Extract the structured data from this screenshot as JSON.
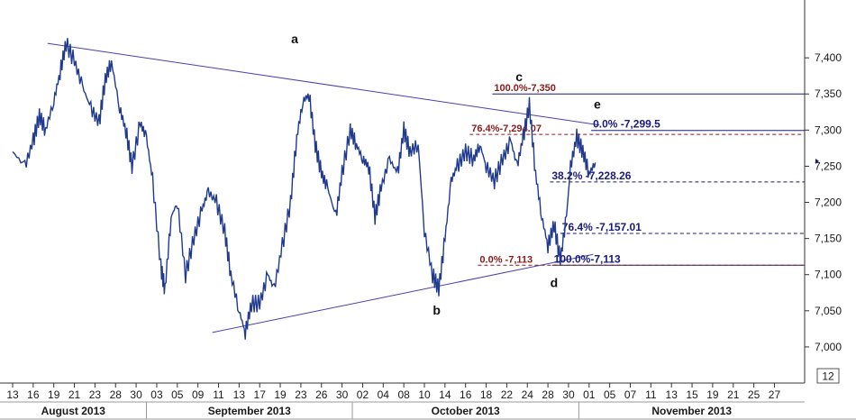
{
  "chart_data": {
    "type": "line",
    "y_axis": {
      "ticks": [
        {
          "value": 7000,
          "label": "7,000"
        },
        {
          "value": 7050,
          "label": "7,050"
        },
        {
          "value": 7100,
          "label": "7,100"
        },
        {
          "value": 7150,
          "label": "7,150"
        },
        {
          "value": 7200,
          "label": "7,200"
        },
        {
          "value": 7250,
          "label": "7,250"
        },
        {
          "value": 7300,
          "label": "7,300"
        },
        {
          "value": 7350,
          "label": "7,350"
        },
        {
          "value": 7400,
          "label": "7,400"
        }
      ],
      "ylim": [
        6950,
        7480
      ],
      "zoom_label": "12"
    },
    "x_axis": {
      "day_ticks": [
        "13",
        "16",
        "19",
        "21",
        "23",
        "28",
        "30",
        "03",
        "05",
        "09",
        "11",
        "13",
        "17",
        "19",
        "23",
        "26",
        "30",
        "02",
        "04",
        "08",
        "10",
        "14",
        "16",
        "18",
        "22",
        "24",
        "28",
        "30",
        "01",
        "05",
        "07",
        "11",
        "13",
        "15",
        "19",
        "21",
        "25",
        "27"
      ],
      "months": [
        {
          "label": "August 2013",
          "first_tick": 0
        },
        {
          "label": "September 2013",
          "first_tick": 7
        },
        {
          "label": "October 2013",
          "first_tick": 17
        },
        {
          "label": "November 2013",
          "first_tick": 28
        }
      ]
    },
    "series": [
      {
        "points": [
          [
            0,
            7270
          ],
          [
            0.6,
            7250
          ],
          [
            1,
            7285
          ],
          [
            1.3,
            7320
          ],
          [
            1.6,
            7300
          ],
          [
            2,
            7340
          ],
          [
            2.3,
            7380
          ],
          [
            2.6,
            7420
          ],
          [
            3,
            7395
          ],
          [
            3.4,
            7360
          ],
          [
            3.8,
            7330
          ],
          [
            4.2,
            7310
          ],
          [
            4.5,
            7370
          ],
          [
            4.8,
            7395
          ],
          [
            5.2,
            7330
          ],
          [
            5.5,
            7300
          ],
          [
            5.8,
            7250
          ],
          [
            6.2,
            7310
          ],
          [
            6.5,
            7290
          ],
          [
            6.8,
            7230
          ],
          [
            7.2,
            7110
          ],
          [
            7.4,
            7080
          ],
          [
            7.7,
            7180
          ],
          [
            8,
            7200
          ],
          [
            8.4,
            7100
          ],
          [
            8.8,
            7150
          ],
          [
            9.2,
            7190
          ],
          [
            9.5,
            7215
          ],
          [
            9.9,
            7200
          ],
          [
            10.3,
            7160
          ],
          [
            10.6,
            7100
          ],
          [
            11,
            7050
          ],
          [
            11.3,
            7020
          ],
          [
            11.6,
            7060
          ],
          [
            12,
            7060
          ],
          [
            12.4,
            7100
          ],
          [
            12.7,
            7080
          ],
          [
            13.1,
            7140
          ],
          [
            13.5,
            7200
          ],
          [
            13.8,
            7290
          ],
          [
            14.1,
            7340
          ],
          [
            14.4,
            7350
          ],
          [
            14.7,
            7280
          ],
          [
            15,
            7240
          ],
          [
            15.3,
            7220
          ],
          [
            15.7,
            7180
          ],
          [
            16,
            7240
          ],
          [
            16.4,
            7300
          ],
          [
            16.7,
            7280
          ],
          [
            17,
            7260
          ],
          [
            17.3,
            7250
          ],
          [
            17.6,
            7180
          ],
          [
            17.9,
            7220
          ],
          [
            18.3,
            7260
          ],
          [
            18.7,
            7240
          ],
          [
            19,
            7300
          ],
          [
            19.3,
            7270
          ],
          [
            19.7,
            7280
          ],
          [
            20,
            7160
          ],
          [
            20.4,
            7100
          ],
          [
            20.7,
            7080
          ],
          [
            21,
            7150
          ],
          [
            21.3,
            7230
          ],
          [
            21.6,
            7250
          ],
          [
            22,
            7270
          ],
          [
            22.4,
            7260
          ],
          [
            22.7,
            7280
          ],
          [
            23,
            7250
          ],
          [
            23.4,
            7230
          ],
          [
            23.8,
            7260
          ],
          [
            24.2,
            7285
          ],
          [
            24.5,
            7250
          ],
          [
            24.8,
            7290
          ],
          [
            25.1,
            7335
          ],
          [
            25.4,
            7240
          ],
          [
            25.7,
            7180
          ],
          [
            26,
            7140
          ],
          [
            26.3,
            7170
          ],
          [
            26.6,
            7120
          ],
          [
            26.9,
            7180
          ],
          [
            27.1,
            7250
          ],
          [
            27.4,
            7290
          ],
          [
            27.7,
            7270
          ],
          [
            28,
            7240
          ],
          [
            28.3,
            7255
          ]
        ]
      }
    ],
    "trendlines": [
      {
        "x": [
          1.7,
          28.5
        ],
        "y": [
          7420,
          7307
        ]
      },
      {
        "x": [
          9.7,
          28.2
        ],
        "y": [
          7020,
          7128
        ]
      }
    ],
    "fib_levels": [
      {
        "value": 7350,
        "label": "100.0%-7,350",
        "style": "solid",
        "color": "#1a1a7a",
        "label_color": "#8b1a1a",
        "x_from": 23.3
      },
      {
        "value": 7294.07,
        "label": "76.4%-7,294.07",
        "style": "dashed",
        "color": "#8b1a1a",
        "label_color": "#8b1a1a",
        "x_from": 22.2
      },
      {
        "value": 7299.5,
        "label": "0.0%   -7,299.5",
        "style": "solid",
        "color": "#1a1a7a",
        "label_color": "#1a1a7a",
        "x_from": 28.1
      },
      {
        "value": 7228.26,
        "label": "38.2%  -7,228.26",
        "style": "dashed",
        "color": "#1a1a7a",
        "label_color": "#1a1a7a",
        "x_from": 26.1
      },
      {
        "value": 7157.01,
        "label": "76.4%  -7,157.01",
        "style": "dashed",
        "color": "#1a1a7a",
        "label_color": "#1a1a7a",
        "x_from": 26.6
      },
      {
        "value": 7113,
        "label": "100.0%-7,113",
        "style": "solid",
        "color": "#1a1a7a",
        "label_color": "#1a1a7a",
        "x_from": 26.2
      },
      {
        "value": 7113,
        "label": "0.0%      -7,113",
        "style": "dashed",
        "color": "#8b1a1a",
        "label_color": "#8b1a1a",
        "x_from": 22.6
      }
    ],
    "wave_labels": [
      {
        "text": "a",
        "x": 13.7,
        "y": 7420
      },
      {
        "text": "b",
        "x": 20.6,
        "y": 7045
      },
      {
        "text": "c",
        "x": 24.6,
        "y": 7368
      },
      {
        "text": "d",
        "x": 26.3,
        "y": 7083
      },
      {
        "text": "e",
        "x": 28.4,
        "y": 7330
      }
    ],
    "last_price_marker": 7257
  }
}
